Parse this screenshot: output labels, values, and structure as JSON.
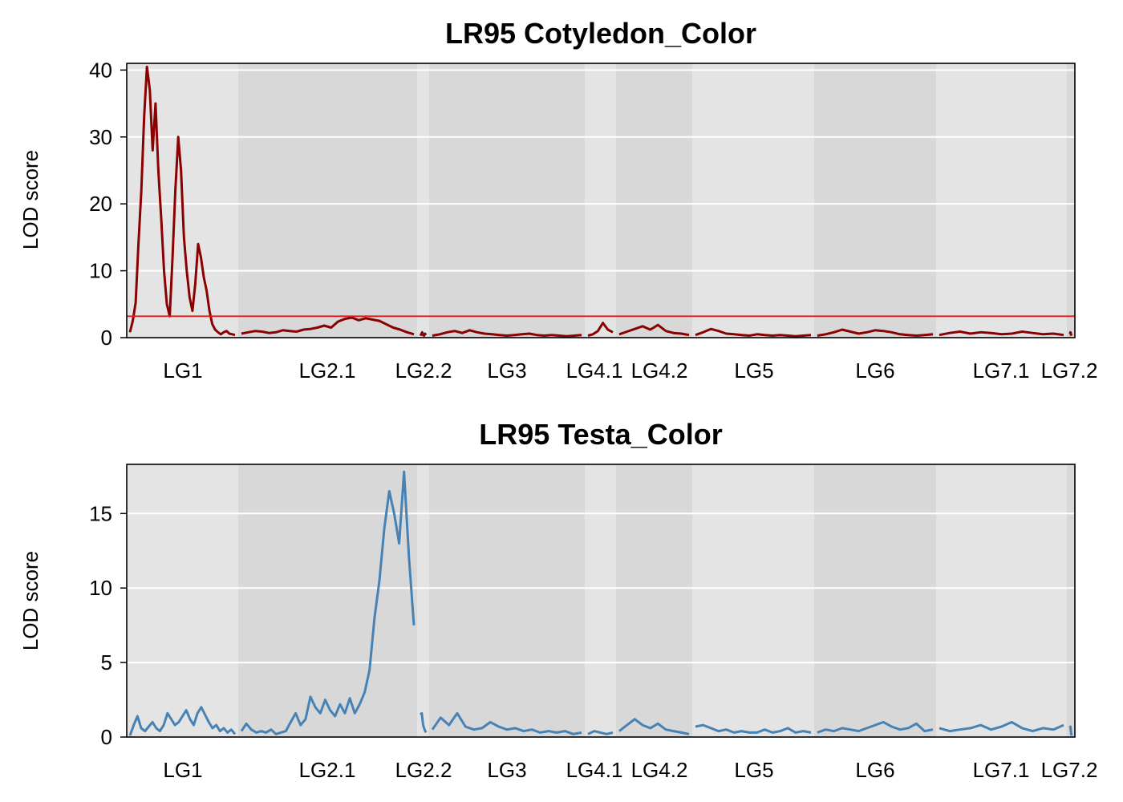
{
  "chart_data": [
    {
      "type": "line",
      "title": "LR95 Cotyledon_Color",
      "ylabel": "LOD score",
      "xlabel": "",
      "x_unit": "chromosome",
      "chromosomes": [
        "LG1",
        "LG2.1",
        "LG2.2",
        "LG3",
        "LG4.1",
        "LG4.2",
        "LG5",
        "LG6",
        "LG7.1",
        "LG7.2"
      ],
      "ylim": [
        0,
        41
      ],
      "yticks": [
        0,
        10,
        20,
        30,
        40
      ],
      "threshold": 3.2,
      "threshold_color": "#e31a1c",
      "series": [
        {
          "color": "#8b0000",
          "chromosomes": {
            "LG1": [
              0.8,
              2.5,
              5.2,
              14,
              22,
              33,
              40.5,
              37,
              28,
              35,
              25,
              18,
              10,
              5,
              3.2,
              12,
              22,
              30,
              25,
              15,
              10,
              6,
              4,
              8,
              14,
              12,
              9,
              7,
              4,
              2,
              1.2,
              0.8,
              0.5,
              0.8,
              1,
              0.6,
              0.5,
              0.4
            ],
            "LG2.1": [
              0.6,
              0.8,
              1,
              0.9,
              0.7,
              0.8,
              1.1,
              1,
              0.9,
              1.2,
              1.3,
              1.5,
              1.8,
              1.5,
              2.4,
              2.8,
              3,
              2.6,
              2.9,
              2.7,
              2.5,
              2,
              1.5,
              1.2,
              0.8,
              0.5
            ],
            "LG2.2": [
              0.3,
              0.5,
              0.8,
              0.4,
              0.3,
              0.6,
              0.4
            ],
            "LG3": [
              0.3,
              0.5,
              0.8,
              1,
              0.7,
              1.1,
              0.8,
              0.6,
              0.5,
              0.4,
              0.3,
              0.4,
              0.5,
              0.6,
              0.4,
              0.3,
              0.4,
              0.3,
              0.2,
              0.3,
              0.4
            ],
            "LG4.1": [
              0.3,
              0.5,
              1,
              2.2,
              1.2,
              0.8
            ],
            "LG4.2": [
              0.5,
              0.9,
              1.3,
              1.7,
              1.2,
              1.9,
              1.0,
              0.7,
              0.6,
              0.4
            ],
            "LG5": [
              0.4,
              0.8,
              1.3,
              1,
              0.6,
              0.5,
              0.4,
              0.3,
              0.5,
              0.4,
              0.3,
              0.4,
              0.3,
              0.2,
              0.3,
              0.4
            ],
            "LG6": [
              0.3,
              0.5,
              0.8,
              1.2,
              0.9,
              0.6,
              0.8,
              1.1,
              1,
              0.8,
              0.5,
              0.4,
              0.3,
              0.4,
              0.5
            ],
            "LG7.1": [
              0.4,
              0.7,
              0.9,
              0.6,
              0.8,
              0.7,
              0.5,
              0.6,
              0.9,
              0.7,
              0.5,
              0.6,
              0.4
            ],
            "LG7.2": [
              0.5,
              0.8,
              0.6,
              0.4,
              0.3
            ]
          }
        }
      ]
    },
    {
      "type": "line",
      "title": "LR95 Testa_Color",
      "ylabel": "LOD score",
      "xlabel": "",
      "x_unit": "chromosome",
      "chromosomes": [
        "LG1",
        "LG2.1",
        "LG2.2",
        "LG3",
        "LG4.1",
        "LG4.2",
        "LG5",
        "LG6",
        "LG7.1",
        "LG7.2"
      ],
      "ylim": [
        0,
        18.3
      ],
      "yticks": [
        0,
        5,
        10,
        15
      ],
      "series": [
        {
          "color": "#4682b4",
          "chromosomes": {
            "LG1": [
              0.1,
              0.8,
              1.4,
              0.6,
              0.4,
              0.7,
              1,
              0.6,
              0.4,
              0.8,
              1.6,
              1.2,
              0.8,
              1,
              1.4,
              1.8,
              1.2,
              0.8,
              1.6,
              2,
              1.5,
              1,
              0.6,
              0.8,
              0.4,
              0.6,
              0.3,
              0.5,
              0.2
            ],
            "LG2.1": [
              0.4,
              0.9,
              0.5,
              0.3,
              0.4,
              0.3,
              0.5,
              0.2,
              0.3,
              0.4,
              1,
              1.6,
              0.8,
              1.2,
              2.7,
              2,
              1.6,
              2.5,
              1.8,
              1.4,
              2.2,
              1.6,
              2.6,
              1.6,
              2.2,
              3,
              4.5,
              8,
              10.5,
              14,
              16.5,
              15,
              13,
              17.8,
              12,
              7.5
            ],
            "LG2.2": [
              1.5,
              1.6,
              0.8,
              0.5,
              0.3
            ],
            "LG3": [
              0.5,
              1.3,
              0.8,
              1.6,
              0.7,
              0.5,
              0.6,
              1,
              0.7,
              0.5,
              0.6,
              0.4,
              0.5,
              0.3,
              0.4,
              0.3,
              0.4,
              0.2,
              0.3
            ],
            "LG4.1": [
              0.2,
              0.4,
              0.3,
              0.2,
              0.3
            ],
            "LG4.2": [
              0.4,
              0.8,
              1.2,
              0.8,
              0.6,
              0.9,
              0.5,
              0.4,
              0.3,
              0.2
            ],
            "LG5": [
              0.7,
              0.8,
              0.6,
              0.4,
              0.5,
              0.3,
              0.4,
              0.3,
              0.3,
              0.5,
              0.3,
              0.4,
              0.6,
              0.3,
              0.4,
              0.3
            ],
            "LG6": [
              0.3,
              0.5,
              0.4,
              0.6,
              0.5,
              0.4,
              0.6,
              0.8,
              1,
              0.7,
              0.5,
              0.6,
              0.9,
              0.4,
              0.5
            ],
            "LG7.1": [
              0.6,
              0.4,
              0.5,
              0.6,
              0.8,
              0.5,
              0.7,
              1,
              0.6,
              0.4,
              0.6,
              0.5,
              0.8
            ],
            "LG7.2": [
              0.6,
              0.7,
              0.4,
              0.2,
              0.1
            ]
          }
        }
      ]
    }
  ]
}
